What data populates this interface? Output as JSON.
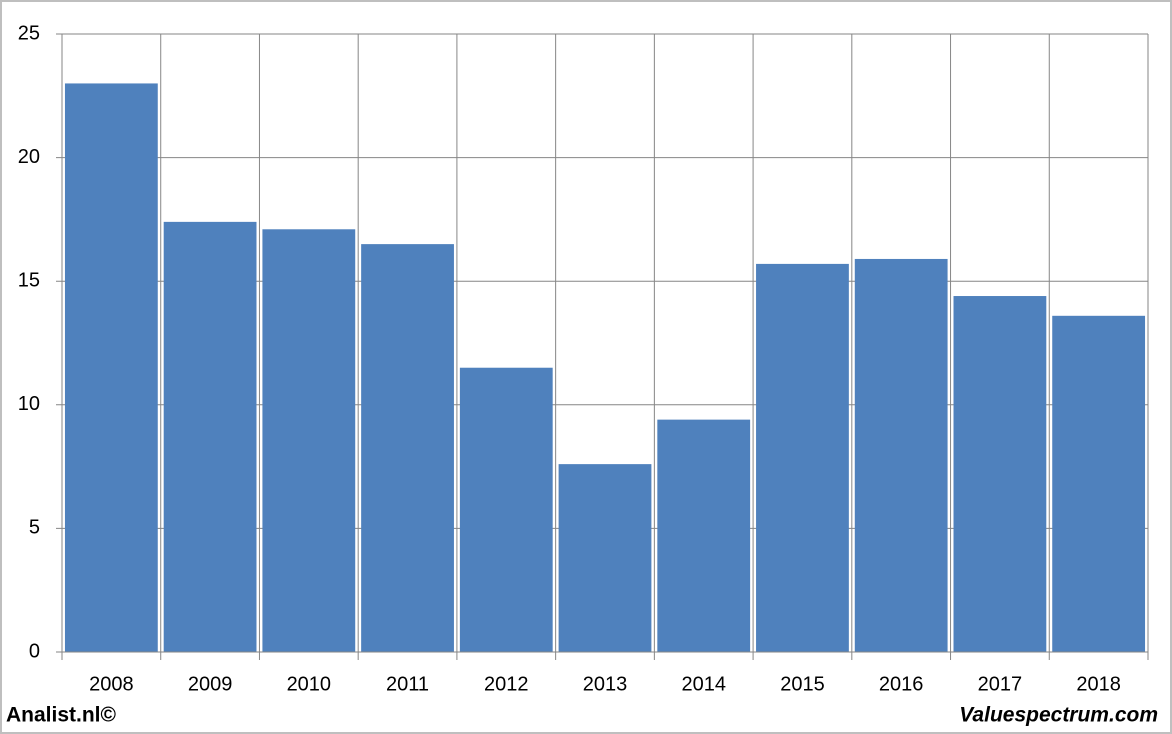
{
  "chart_data": {
    "type": "bar",
    "categories": [
      "2008",
      "2009",
      "2010",
      "2011",
      "2012",
      "2013",
      "2014",
      "2015",
      "2016",
      "2017",
      "2018"
    ],
    "values": [
      23.0,
      17.4,
      17.1,
      16.5,
      11.5,
      7.6,
      9.4,
      15.7,
      15.9,
      14.4,
      13.6
    ],
    "color": "#4f81bd",
    "ylim": [
      0,
      25
    ],
    "yticks": [
      0,
      5,
      10,
      15,
      20,
      25
    ],
    "grid": true
  },
  "footer": {
    "left": "Analist.nl©",
    "right": "Valuespectrum.com"
  }
}
